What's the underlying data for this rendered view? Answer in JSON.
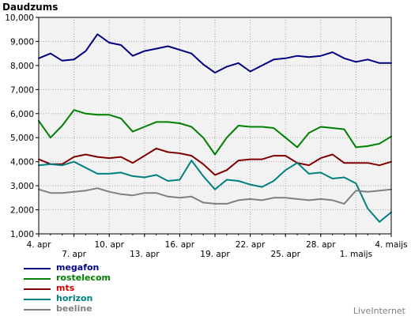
{
  "chart_data": {
    "type": "line",
    "title": "Daudzums",
    "credit": "LiveInternet",
    "ylim": [
      1000,
      10000
    ],
    "yticks": [
      1000,
      2000,
      3000,
      4000,
      5000,
      6000,
      7000,
      8000,
      9000,
      10000
    ],
    "ytick_labels": [
      "1,000",
      "2,000",
      "3,000",
      "4,000",
      "5,000",
      "6,000",
      "7,000",
      "8,000",
      "9,000",
      "10,000"
    ],
    "x": [
      "4. apr",
      "5. apr",
      "6. apr",
      "7. apr",
      "8. apr",
      "9. apr",
      "10. apr",
      "11. apr",
      "12. apr",
      "13. apr",
      "14. apr",
      "15. apr",
      "16. apr",
      "17. apr",
      "18. apr",
      "19. apr",
      "20. apr",
      "21. apr",
      "22. apr",
      "23. apr",
      "24. apr",
      "25. apr",
      "26. apr",
      "27. apr",
      "28. apr",
      "29. apr",
      "30. apr",
      "1. maijs",
      "2. maijs",
      "3. maijs",
      "4. maijs"
    ],
    "xtick_labels": [
      {
        "index": 0,
        "label": "4. apr",
        "row": 1
      },
      {
        "index": 3,
        "label": "7. apr",
        "row": 2
      },
      {
        "index": 6,
        "label": "10. apr",
        "row": 1
      },
      {
        "index": 9,
        "label": "13. apr",
        "row": 2
      },
      {
        "index": 12,
        "label": "16. apr",
        "row": 1
      },
      {
        "index": 15,
        "label": "19. apr",
        "row": 2
      },
      {
        "index": 18,
        "label": "22. apr",
        "row": 1
      },
      {
        "index": 21,
        "label": "25. apr",
        "row": 2
      },
      {
        "index": 24,
        "label": "28. apr",
        "row": 1
      },
      {
        "index": 27,
        "label": "1. maijs",
        "row": 2
      },
      {
        "index": 30,
        "label": "4. maijs",
        "row": 1
      }
    ],
    "grid": true,
    "legend_position": "bottom-left",
    "series": [
      {
        "name": "megafon",
        "color": "#000080",
        "values": [
          8300,
          8500,
          8200,
          8250,
          8600,
          9300,
          8950,
          8850,
          8400,
          8600,
          8700,
          8800,
          8650,
          8500,
          8050,
          7700,
          7950,
          8100,
          7750,
          8000,
          8250,
          8300,
          8400,
          8350,
          8400,
          8550,
          8300,
          8150,
          8250,
          8100,
          8100
        ]
      },
      {
        "name": "rostelecom",
        "color": "#008000",
        "values": [
          5700,
          5000,
          5500,
          6150,
          6000,
          5950,
          5950,
          5800,
          5250,
          5450,
          5650,
          5650,
          5600,
          5450,
          5000,
          4300,
          5000,
          5500,
          5450,
          5450,
          5400,
          5000,
          4600,
          5200,
          5450,
          5400,
          5350,
          4600,
          4650,
          4750,
          5050
        ]
      },
      {
        "name": "mts",
        "color": "#800000",
        "values": [
          4100,
          3900,
          3900,
          4200,
          4300,
          4200,
          4150,
          4200,
          3950,
          4250,
          4550,
          4400,
          4350,
          4250,
          3900,
          3450,
          3650,
          4050,
          4100,
          4100,
          4250,
          4250,
          3950,
          3850,
          4150,
          4300,
          3950,
          3950,
          3950,
          3850,
          4000
        ]
      },
      {
        "name": "horizon",
        "color": "#008080",
        "values": [
          3850,
          3900,
          3850,
          4000,
          3750,
          3500,
          3500,
          3550,
          3400,
          3350,
          3450,
          3200,
          3250,
          4050,
          3400,
          2850,
          3250,
          3200,
          3050,
          2950,
          3200,
          3650,
          3950,
          3500,
          3550,
          3300,
          3350,
          3100,
          2050,
          1500,
          1900
        ]
      },
      {
        "name": "beeline",
        "color": "#808080",
        "values": [
          2850,
          2700,
          2700,
          2750,
          2800,
          2900,
          2750,
          2650,
          2600,
          2700,
          2700,
          2550,
          2500,
          2550,
          2300,
          2250,
          2250,
          2400,
          2450,
          2400,
          2500,
          2500,
          2450,
          2400,
          2450,
          2400,
          2250,
          2800,
          2750,
          2800,
          2850
        ]
      }
    ]
  }
}
